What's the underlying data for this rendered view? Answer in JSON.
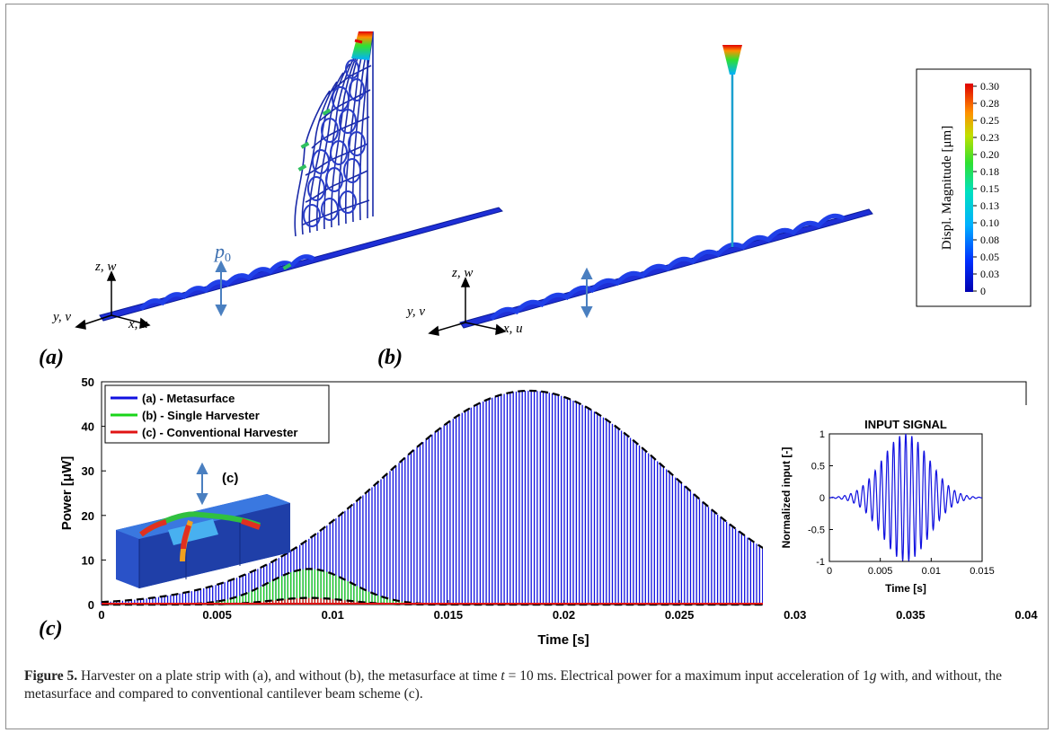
{
  "panel_labels": {
    "a": "(a)",
    "b": "(b)",
    "c": "(c)"
  },
  "model_a": {
    "axis_z": "z, w",
    "axis_y": "y, v",
    "axis_x": "x, u",
    "force": "p",
    "force_sub": "0"
  },
  "model_b": {
    "axis_z": "z, w",
    "axis_y": "y, v",
    "axis_x": "x, u"
  },
  "colorbar": {
    "title": "Displ. Magnitude [μm]",
    "ticks": [
      "0.30",
      "0.28",
      "0.25",
      "0.23",
      "0.20",
      "0.18",
      "0.15",
      "0.13",
      "0.10",
      "0.08",
      "0.05",
      "0.03",
      "0"
    ]
  },
  "inset_3d_label": "(c)",
  "chart_data": [
    {
      "type": "line",
      "xlabel": "Time [s]",
      "ylabel": "Power [μW]",
      "xlim": [
        0,
        0.04
      ],
      "ylim": [
        0,
        50
      ],
      "xticks": [
        "0",
        "0.005",
        "0.01",
        "0.015",
        "0.02",
        "0.025",
        "0.03",
        "0.035",
        "0.04"
      ],
      "yticks": [
        "0",
        "10",
        "20",
        "30",
        "40",
        "50"
      ],
      "legend_position": "top-left",
      "series": [
        {
          "name": "(a) - Metasurface",
          "color": "#1010e0",
          "peak": 48,
          "peak_time": 0.0185,
          "sigma": 0.0062,
          "start": 0.0,
          "end": 0.04
        },
        {
          "name": "(b) - Single Harvester",
          "color": "#19d419",
          "peak": 8,
          "peak_time": 0.009,
          "sigma": 0.0018,
          "start": 0.0,
          "end": 0.016
        },
        {
          "name": "(c) - Conventional Harvester",
          "color": "#e01414",
          "peak": 1.5,
          "peak_time": 0.009,
          "sigma": 0.0016,
          "start": 0.0,
          "end": 0.04
        }
      ]
    },
    {
      "type": "line",
      "title": "INPUT SIGNAL",
      "xlabel": "Time [s]",
      "ylabel": "Normalized input [-]",
      "xlim": [
        0,
        0.015
      ],
      "ylim": [
        -1,
        1
      ],
      "xticks": [
        "0",
        "0.005",
        "0.01",
        "0.015"
      ],
      "yticks": [
        "1",
        "0.5",
        "0",
        "-0.5",
        "-1"
      ],
      "series": [
        {
          "name": "",
          "color": "#1010e0",
          "amplitude": 1,
          "center": 0.0075,
          "sigma": 0.0023,
          "cycles": 25
        }
      ]
    }
  ],
  "caption": {
    "label": "Figure 5.",
    "text1": " Harvester on a plate strip with (a), and without (b), the metasurface at time ",
    "math": "t",
    "text2": " = 10 ms. Electrical power for a maximum input acceleration of 1",
    "g": "g",
    "text3": " with, and without, the metasurface and compared to conventional cantilever beam scheme (c)."
  }
}
